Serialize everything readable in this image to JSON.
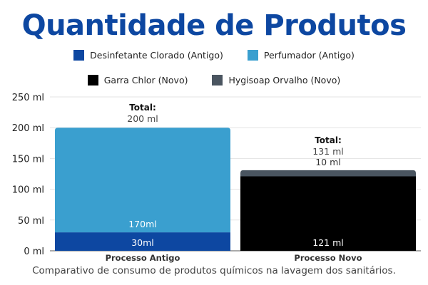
{
  "title": "Quantidade de Produtos",
  "caption": "Comparativo de consumo de produtos químicos na lavagem dos sanitários.",
  "colors": {
    "title": "#0d47a1",
    "desinfetante": "#0d47a1",
    "perfumador": "#3a9fcf",
    "garra": "#000000",
    "hygisoap": "#4a5560"
  },
  "chart_data": {
    "type": "bar",
    "stacked": true,
    "categories": [
      "Processo Antigo",
      "Processo Novo"
    ],
    "series": [
      {
        "name": "Desinfetante Clorado (Antigo)",
        "values": [
          30,
          0
        ],
        "labels": [
          "30ml",
          ""
        ],
        "color": "#0d47a1"
      },
      {
        "name": "Perfumador (Antigo)",
        "values": [
          170,
          0
        ],
        "labels": [
          "170ml",
          ""
        ],
        "color": "#3a9fcf"
      },
      {
        "name": "Garra Chlor (Novo)",
        "values": [
          0,
          121
        ],
        "labels": [
          "",
          "121 ml"
        ],
        "color": "#000000"
      },
      {
        "name": "Hygisoap Orvalho (Novo)",
        "values": [
          0,
          10
        ],
        "labels": [
          "",
          "10 ml"
        ],
        "color": "#4a5560"
      }
    ],
    "totals": [
      {
        "label": "Total:",
        "value": "200 ml"
      },
      {
        "label": "Total:",
        "value": "131 ml"
      }
    ],
    "yticks": [
      "0 ml",
      "50 ml",
      "100 ml",
      "150 ml",
      "200 ml",
      "250 ml"
    ],
    "ylim": [
      0,
      250
    ],
    "grid": true,
    "legend_position": "top"
  }
}
